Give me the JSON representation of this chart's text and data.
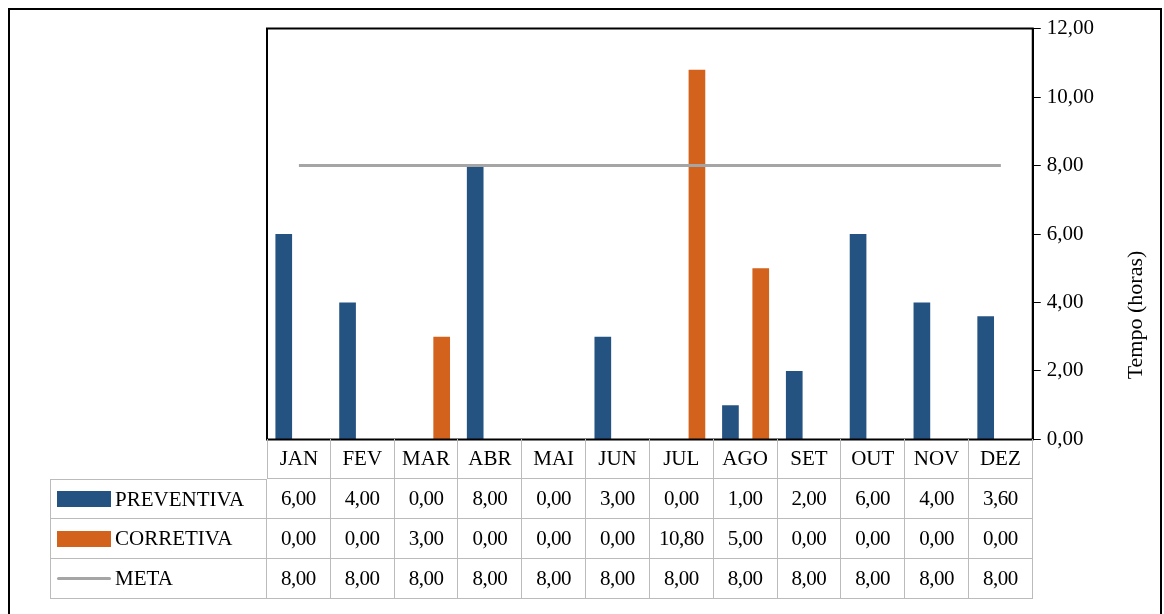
{
  "chart_data": {
    "type": "bar",
    "categories": [
      "JAN",
      "FEV",
      "MAR",
      "ABR",
      "MAI",
      "JUN",
      "JUL",
      "AGO",
      "SET",
      "OUT",
      "NOV",
      "DEZ"
    ],
    "ylabel": "Tempo (horas)",
    "ylim": [
      0,
      12
    ],
    "yticks": [
      {
        "value": 0,
        "label": "0,00"
      },
      {
        "value": 2,
        "label": "2,00"
      },
      {
        "value": 4,
        "label": "4,00"
      },
      {
        "value": 6,
        "label": "6,00"
      },
      {
        "value": 8,
        "label": "8,00"
      },
      {
        "value": 10,
        "label": "10,00"
      },
      {
        "value": 12,
        "label": "12,00"
      }
    ],
    "grid": false,
    "legend": "bottom left",
    "series": [
      {
        "name": "PREVENTIVA",
        "type": "bar",
        "color": "#245382",
        "values": [
          6,
          4,
          0,
          8,
          0,
          3,
          0,
          1,
          2,
          6,
          4,
          3.6
        ],
        "value_labels": [
          "6,00",
          "4,00",
          "0,00",
          "8,00",
          "0,00",
          "3,00",
          "0,00",
          "1,00",
          "2,00",
          "6,00",
          "4,00",
          "3,60"
        ]
      },
      {
        "name": "CORRETIVA",
        "type": "bar",
        "color": "#d2621c",
        "values": [
          0,
          0,
          3,
          0,
          0,
          0,
          10.8,
          5,
          0,
          0,
          0,
          0
        ],
        "value_labels": [
          "0,00",
          "0,00",
          "3,00",
          "0,00",
          "0,00",
          "0,00",
          "10,80",
          "5,00",
          "0,00",
          "0,00",
          "0,00",
          "0,00"
        ]
      },
      {
        "name": "META",
        "type": "line",
        "color": "#a5a5a5",
        "values": [
          8,
          8,
          8,
          8,
          8,
          8,
          8,
          8,
          8,
          8,
          8,
          8
        ],
        "value_labels": [
          "8,00",
          "8,00",
          "8,00",
          "8,00",
          "8,00",
          "8,00",
          "8,00",
          "8,00",
          "8,00",
          "8,00",
          "8,00",
          "8,00"
        ]
      }
    ]
  }
}
